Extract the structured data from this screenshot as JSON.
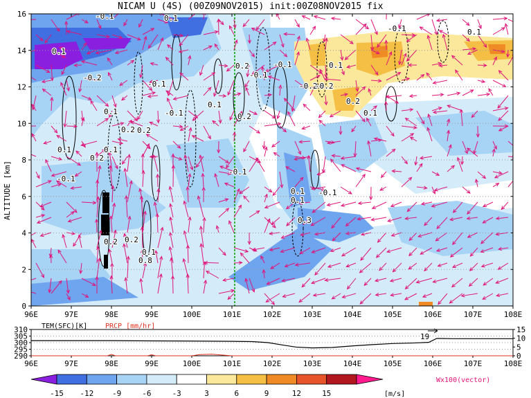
{
  "title": "NICAM U (4S) (00Z09NOV2015) init:00Z08NOV2015 fix",
  "colors": {
    "c_n15": "#8a1fe0",
    "c_n12": "#3f6fe0",
    "c_n9": "#6fa4ef",
    "c_n6": "#a7d3f5",
    "c_n3": "#d4ecfa",
    "c_3": "#fbe89a",
    "c_6": "#f5bf45",
    "c_9": "#f08a24",
    "c_12": "#e8542a",
    "c_15": "#b2171f",
    "c_over": "#ff1b8d",
    "vector": "#e0147a",
    "marker": "#00a000",
    "prcp": "#e03020"
  },
  "chart_data": [
    {
      "type": "heatmap",
      "title": "NICAM U (4S) (00Z09NOV2015) init:00Z08NOV2015 fix",
      "xlabel": "",
      "ylabel": "ALTITUDE [km]",
      "x_ticks": [
        "96E",
        "97E",
        "98E",
        "99E",
        "100E",
        "101E",
        "102E",
        "103E",
        "104E",
        "105E",
        "106E",
        "107E",
        "108E"
      ],
      "y_ticks": [
        "0",
        "2",
        "4",
        "6",
        "8",
        "10",
        "12",
        "14",
        "16"
      ],
      "xlim": [
        96,
        108
      ],
      "ylim": [
        0,
        16
      ],
      "vertical_marker_lon": 101,
      "contour_labels": [
        "-0.1",
        "0.1",
        "-0.2",
        "0.1",
        "-0.1",
        "0.2",
        "-0.1",
        "0.1",
        "-0.2",
        "0.1",
        "-0.1",
        "0.1",
        "0.2",
        "0.1",
        "-0.1",
        "0.2",
        "0.2",
        "0.1",
        "0.2",
        "-0.1",
        "-0.2",
        "0.1",
        "0.1",
        "-0.1",
        "0.2",
        "0.1",
        "-0.1",
        "-0.1",
        "0.1",
        "0.3",
        "0.2",
        "0.1",
        "0.8",
        "0.2"
      ],
      "notes": "Shaded zonal wind U with vertical-velocity contours and wind vectors"
    },
    {
      "type": "line",
      "series_labels": [
        "TEM(SFC)[K]",
        "PRCP [mm/hr]"
      ],
      "left_ticks": [
        "310",
        "305",
        "300",
        "295",
        "290"
      ],
      "right_ticks": [
        "15",
        "10",
        "5",
        "0"
      ],
      "annotation": "19",
      "x_ticks": [
        "96E",
        "97E",
        "98E",
        "99E",
        "100E",
        "101E",
        "102E",
        "103E",
        "104E",
        "105E",
        "106E",
        "107E",
        "108E"
      ],
      "xlim": [
        96,
        108
      ],
      "tem_series": {
        "x": [
          96,
          97,
          98,
          99,
          100,
          101,
          101.5,
          101.9,
          102.3,
          102.6,
          103,
          103.5,
          104,
          104.5,
          105,
          105.5,
          105.9,
          106.1,
          106.5,
          107,
          108
        ],
        "y": [
          301.5,
          301.5,
          301.5,
          301.3,
          301.2,
          301.0,
          300.8,
          300.0,
          298.0,
          296.6,
          296.0,
          296.3,
          297.5,
          298.5,
          299.3,
          299.7,
          300.2,
          303.2,
          303.0,
          303.0,
          303.0
        ]
      },
      "prcp_series": {
        "x": [
          96,
          97.9,
          98.0,
          98.1,
          98.9,
          99.0,
          99.1,
          100.0,
          100.2,
          100.5,
          101,
          108
        ],
        "y": [
          0,
          0,
          0.8,
          0,
          0,
          0.6,
          0,
          0,
          0.7,
          0.9,
          0,
          0
        ]
      }
    }
  ],
  "colorbar": {
    "labels": [
      "-15",
      "-12",
      "-9",
      "-6",
      "-3",
      "3",
      "6",
      "9",
      "12",
      "15"
    ],
    "unit": "[m/s]",
    "vector_label": "Wx100(vector)"
  }
}
